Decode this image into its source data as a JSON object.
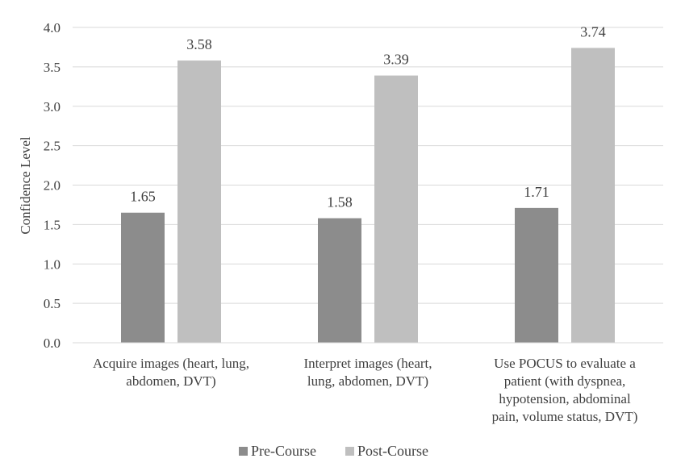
{
  "chart_data": {
    "type": "bar",
    "title": "",
    "xlabel": "",
    "ylabel": "Confidence Level",
    "ylim": [
      0,
      4.0
    ],
    "yticks": [
      "0.0",
      "0.5",
      "1.0",
      "1.5",
      "2.0",
      "2.5",
      "3.0",
      "3.5",
      "4.0"
    ],
    "grid": true,
    "legend_position": "bottom",
    "categories": [
      [
        "Acquire images (heart, lung,",
        "abdomen, DVT)"
      ],
      [
        "Interpret images (heart,",
        "lung, abdomen, DVT)"
      ],
      [
        "Use POCUS to evaluate a",
        "patient (with dyspnea,",
        "hypotension, abdominal",
        "pain, volume status, DVT)"
      ]
    ],
    "series": [
      {
        "name": "Pre-Course",
        "color": "#8c8c8c",
        "values": [
          1.65,
          1.58,
          1.71
        ],
        "labels": [
          "1.65",
          "1.58",
          "1.71"
        ]
      },
      {
        "name": "Post-Course",
        "color": "#bfbfbf",
        "values": [
          3.58,
          3.39,
          3.74
        ],
        "labels": [
          "3.58",
          "3.39",
          "3.74"
        ]
      }
    ]
  }
}
